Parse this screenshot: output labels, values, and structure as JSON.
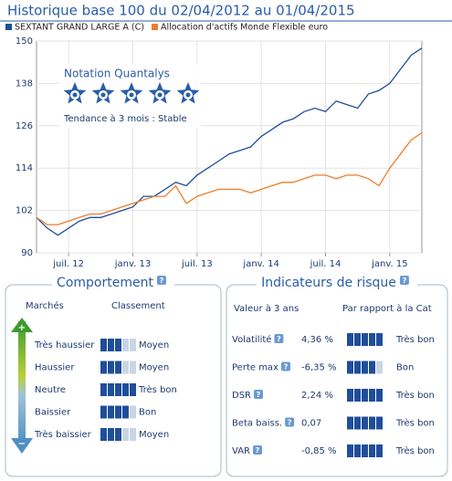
{
  "chart_data": {
    "type": "line",
    "title": "Historique base 100 du 02/04/2012 au 01/04/2015",
    "x": [
      "2012-04",
      "2012-05",
      "2012-06",
      "2012-07",
      "2012-08",
      "2012-09",
      "2012-10",
      "2012-11",
      "2012-12",
      "2013-01",
      "2013-02",
      "2013-03",
      "2013-04",
      "2013-05",
      "2013-06",
      "2013-07",
      "2013-08",
      "2013-09",
      "2013-10",
      "2013-11",
      "2013-12",
      "2014-01",
      "2014-02",
      "2014-03",
      "2014-04",
      "2014-05",
      "2014-06",
      "2014-07",
      "2014-08",
      "2014-09",
      "2014-10",
      "2014-11",
      "2014-12",
      "2015-01",
      "2015-02",
      "2015-03",
      "2015-04"
    ],
    "series": [
      {
        "name": "SEXTANT GRAND LARGE A (C)",
        "color": "#1f4e9a",
        "values": [
          100,
          97,
          95,
          97,
          99,
          100,
          100,
          101,
          102,
          103,
          106,
          106,
          108,
          110,
          109,
          112,
          114,
          116,
          118,
          119,
          120,
          123,
          125,
          127,
          128,
          130,
          131,
          130,
          133,
          132,
          131,
          135,
          136,
          138,
          142,
          146,
          148
        ]
      },
      {
        "name": "Allocation d'actifs Monde Flexible euro",
        "color": "#f07d2a",
        "values": [
          100,
          98,
          98,
          99,
          100,
          101,
          101,
          102,
          103,
          104,
          105,
          106,
          106,
          109,
          104,
          106,
          107,
          108,
          108,
          108,
          107,
          108,
          109,
          110,
          110,
          111,
          112,
          112,
          111,
          112,
          112,
          111,
          109,
          114,
          118,
          122,
          124
        ]
      }
    ],
    "xlim": [
      "2012-04",
      "2015-04"
    ],
    "xticks": [
      {
        "value": "2012-07",
        "label": "juil. 12"
      },
      {
        "value": "2013-01",
        "label": "janv. 13"
      },
      {
        "value": "2013-07",
        "label": "juil. 13"
      },
      {
        "value": "2014-01",
        "label": "janv. 14"
      },
      {
        "value": "2014-07",
        "label": "juil. 14"
      },
      {
        "value": "2015-01",
        "label": "janv. 15"
      }
    ],
    "ylim": [
      90,
      150
    ],
    "yticks": [
      90,
      102,
      114,
      126,
      138,
      150
    ],
    "grid": true
  },
  "rating_box": {
    "title": "Notation Quantalys",
    "stars": 5,
    "trend": "Tendance à 3 mois : Stable"
  },
  "behaviour": {
    "title": "Comportement",
    "help": "?",
    "headers": [
      "Marchés",
      "Classement"
    ],
    "gauge_top": "+",
    "gauge_bottom": "−",
    "score_max": 5,
    "rows": [
      {
        "market": "Très haussier",
        "score": 3,
        "rank": "Moyen"
      },
      {
        "market": "Haussier",
        "score": 3,
        "rank": "Moyen"
      },
      {
        "market": "Neutre",
        "score": 5,
        "rank": "Très bon"
      },
      {
        "market": "Baissier",
        "score": 4,
        "rank": "Bon"
      },
      {
        "market": "Très baissier",
        "score": 3,
        "rank": "Moyen"
      }
    ]
  },
  "risk": {
    "title": "Indicateurs de risque",
    "help": "?",
    "headers": [
      "Valeur à 3 ans",
      "Par rapport à la Cat"
    ],
    "score_max": 5,
    "rows": [
      {
        "label": "Volatilité",
        "value": "4,36 %",
        "score": 5,
        "rank": "Très bon"
      },
      {
        "label": "Perte max",
        "value": "-6,35 %",
        "score": 4,
        "rank": "Bon"
      },
      {
        "label": "DSR",
        "value": "2,24 %",
        "score": 5,
        "rank": "Très bon"
      },
      {
        "label": "Beta baiss.",
        "value": "0,07",
        "score": 5,
        "rank": "Très bon"
      },
      {
        "label": "VAR",
        "value": "-0,85 %",
        "score": 5,
        "rank": "Très bon"
      }
    ]
  }
}
